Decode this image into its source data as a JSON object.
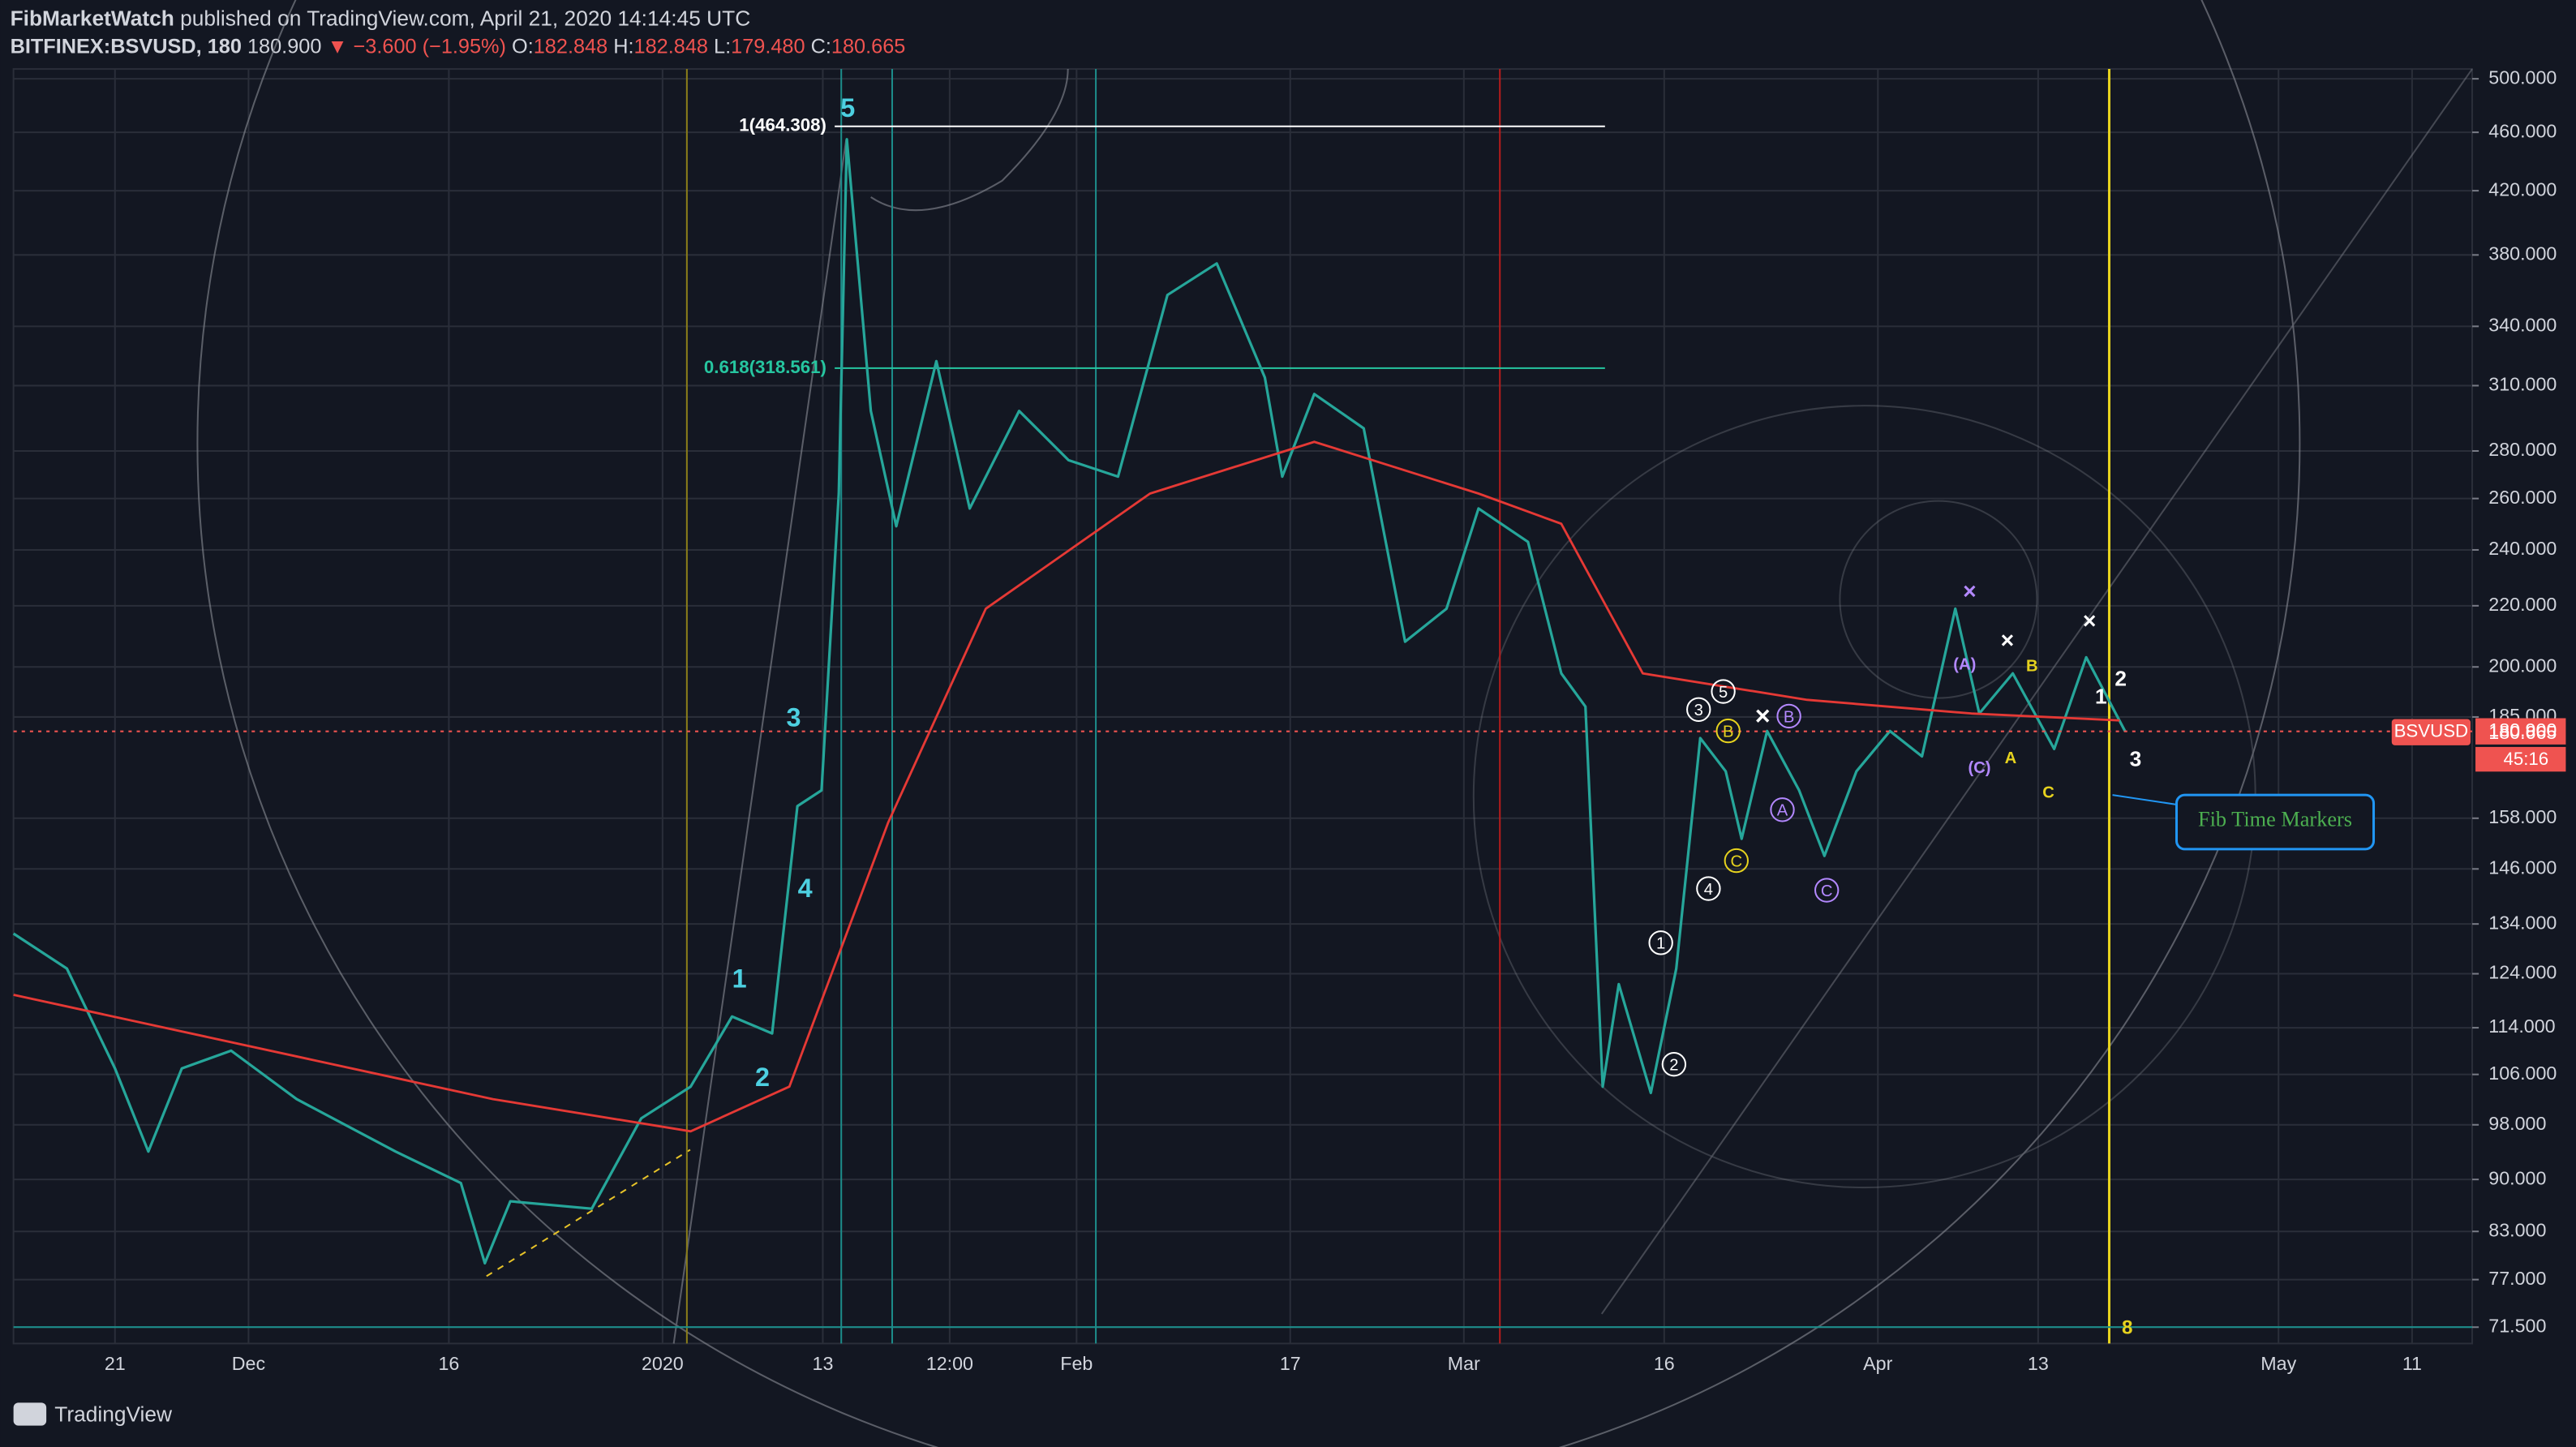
{
  "header": {
    "author": "FibMarketWatch",
    "published": "published on TradingView.com, April 21, 2020 14:14:45 UTC",
    "symbol": "BITFINEX:BSVUSD, 180",
    "arrow": "▼",
    "change": "−3.600 (−1.95%)",
    "o_label": "O:",
    "open": "182.848",
    "h_label": "H:",
    "high": "182.848",
    "l_label": "L:",
    "low": "179.480",
    "c_label": "C:",
    "close": "180.665"
  },
  "chart_data": {
    "type": "line",
    "log_scale": true,
    "grid": true,
    "xlim": [
      -48.6,
      135.5
    ],
    "ylim": [
      69.7,
      507.7
    ],
    "xticks": [
      {
        "value": -41,
        "label": "21"
      },
      {
        "value": -31,
        "label": "Dec"
      },
      {
        "value": -16,
        "label": "16"
      },
      {
        "value": 0,
        "label": "2020"
      },
      {
        "value": 12,
        "label": "13"
      },
      {
        "value": 21.5,
        "label": "12:00"
      },
      {
        "value": 31,
        "label": "Feb"
      },
      {
        "value": 47,
        "label": "17"
      },
      {
        "value": 60,
        "label": "Mar"
      },
      {
        "value": 75,
        "label": "16"
      },
      {
        "value": 91,
        "label": "Apr"
      },
      {
        "value": 103,
        "label": "13"
      },
      {
        "value": 121,
        "label": "May"
      },
      {
        "value": 131,
        "label": "11"
      }
    ],
    "yticks": [
      {
        "value": 500,
        "label": "500.000"
      },
      {
        "value": 460,
        "label": "460.000"
      },
      {
        "value": 420,
        "label": "420.000"
      },
      {
        "value": 380,
        "label": "380.000"
      },
      {
        "value": 340,
        "label": "340.000"
      },
      {
        "value": 310,
        "label": "310.000"
      },
      {
        "value": 280,
        "label": "280.000"
      },
      {
        "value": 260,
        "label": "260.000"
      },
      {
        "value": 240,
        "label": "240.000"
      },
      {
        "value": 220,
        "label": "220.000"
      },
      {
        "value": 200,
        "label": "200.000"
      },
      {
        "value": 185,
        "label": "185.000"
      },
      {
        "value": 158,
        "label": "158.000"
      },
      {
        "value": 146,
        "label": "146.000"
      },
      {
        "value": 134,
        "label": "134.000"
      },
      {
        "value": 124,
        "label": "124.000"
      },
      {
        "value": 114,
        "label": "114.000"
      },
      {
        "value": 106,
        "label": "106.000"
      },
      {
        "value": 98,
        "label": "98.000"
      },
      {
        "value": 90,
        "label": "90.000"
      },
      {
        "value": 83,
        "label": "83.000"
      },
      {
        "value": 77,
        "label": "77.000"
      },
      {
        "value": 71.5,
        "label": "71.500"
      }
    ],
    "series": [
      {
        "name": "BSVUSD",
        "color": "#26a69a",
        "x": [
          -48.6,
          -44.6,
          -41.0,
          -38.5,
          -36.0,
          -32.3,
          -27.4,
          -20.0,
          -15.1,
          -13.3,
          -11.4,
          -5.3,
          -1.6,
          2.1,
          5.2,
          8.2,
          10.1,
          11.9,
          13.2,
          13.8,
          15.6,
          17.5,
          20.5,
          23.0,
          26.7,
          30.4,
          34.1,
          37.8,
          41.5,
          45.1,
          46.4,
          48.8,
          52.5,
          55.6,
          58.7,
          61.1,
          64.8,
          67.3,
          69.1,
          70.4,
          71.6,
          74.0,
          75.9,
          77.7,
          79.6,
          80.8,
          82.7,
          85.1,
          87.0,
          89.4,
          91.9,
          94.3,
          96.8,
          98.6,
          101.1,
          104.2,
          106.6,
          109.5
        ],
        "values": [
          132,
          125,
          107,
          94,
          107,
          110,
          102,
          94,
          89.5,
          79,
          87,
          86,
          99,
          104,
          116,
          113,
          161,
          165,
          262,
          455,
          298,
          249,
          322,
          256,
          298,
          276,
          269,
          357,
          375,
          314,
          269,
          306,
          290,
          208,
          219,
          256,
          243,
          198,
          188,
          104,
          122,
          103,
          125,
          179,
          170,
          153,
          181,
          165,
          149,
          170,
          181,
          174,
          219,
          186,
          198,
          176,
          203,
          181
        ]
      },
      {
        "color": "#e53935",
        "x": [
          -48.6,
          -12.7,
          2.1,
          9.5,
          16.9,
          24.2,
          36.5,
          48.8,
          61.1,
          67.3,
          73.4,
          85.7,
          98.0,
          109.1
        ],
        "values": [
          120,
          102,
          97,
          104,
          157,
          219,
          262,
          284,
          262,
          250,
          198,
          190,
          186,
          184
        ]
      }
    ],
    "fib_levels": [
      {
        "value": 464.308,
        "label": "1(464.308)"
      },
      {
        "value": 318.561,
        "label": "0.618(318.561)"
      }
    ],
    "last_price": {
      "value": 180.9,
      "label": "180.900"
    },
    "close_price": {
      "value": 180.665,
      "label": "180.665"
    },
    "symbol_tag": "BSVUSD",
    "countdown": "45:16",
    "annotations": [
      "5",
      "3",
      "4",
      "1",
      "2",
      "1",
      "2",
      "3",
      "4",
      "5",
      "B",
      "C",
      "A",
      "B",
      "C",
      "(A)",
      "(C)",
      "A",
      "B",
      "C",
      "1",
      "2",
      "3",
      "×",
      "×",
      "×",
      "×",
      "8"
    ],
    "callout": "Fib Time Markers"
  },
  "footer": "TradingView"
}
